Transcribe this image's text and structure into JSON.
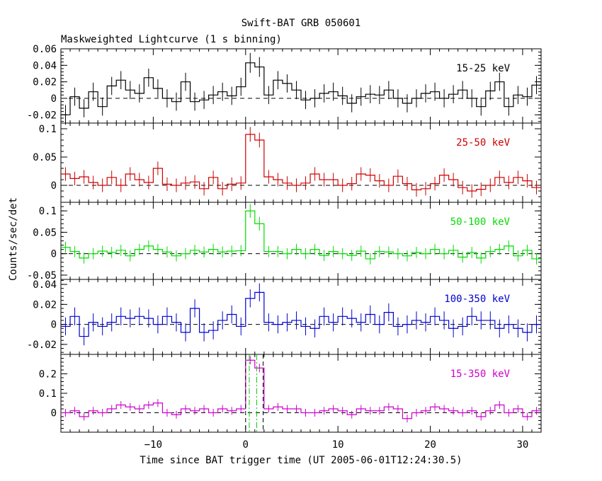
{
  "title": "Swift-BAT GRB 050601",
  "subtitle": "Maskweighted Lightcurve (1 s binning)",
  "xlabel": "Time since BAT trigger time (UT 2005-06-01T12:24:30.5)",
  "ylabel": "Counts/sec/det",
  "chart_data": [
    {
      "type": "line",
      "band": "15-25 keV",
      "color": "#000000",
      "xlim": [
        -20,
        32
      ],
      "ylim": [
        -0.03,
        0.06
      ],
      "yticks": [
        -0.02,
        0,
        0.02,
        0.04,
        0.06
      ],
      "ytick_labels": [
        "-0.02",
        "0",
        "0.02",
        "0.04",
        "0.06"
      ],
      "x": [
        -20,
        -19,
        -18,
        -17,
        -16,
        -15,
        -14,
        -13,
        -12,
        -11,
        -10,
        -9,
        -8,
        -7,
        -6,
        -5,
        -4,
        -3,
        -2,
        -1,
        0,
        1,
        2,
        3,
        4,
        5,
        6,
        7,
        8,
        9,
        10,
        11,
        12,
        13,
        14,
        15,
        16,
        17,
        18,
        19,
        20,
        21,
        22,
        23,
        24,
        25,
        26,
        27,
        28,
        29,
        30,
        31
      ],
      "values": [
        -0.02,
        0.002,
        -0.012,
        0.008,
        -0.01,
        0.015,
        0.022,
        0.01,
        0.006,
        0.025,
        0.012,
        0.0,
        -0.004,
        0.02,
        -0.004,
        -0.002,
        0.004,
        0.008,
        0.003,
        0.014,
        0.043,
        0.038,
        0.004,
        0.022,
        0.018,
        0.01,
        -0.002,
        0.0,
        0.006,
        0.008,
        0.003,
        -0.006,
        0.002,
        0.005,
        0.004,
        0.01,
        0.0,
        -0.006,
        0.0,
        0.006,
        0.008,
        0.0,
        0.005,
        0.01,
        0.0,
        -0.01,
        0.009,
        0.02,
        -0.01,
        0.004,
        0.002,
        0.016
      ],
      "errors": [
        0.012,
        0.011,
        0.011,
        0.011,
        0.011,
        0.011,
        0.011,
        0.011,
        0.011,
        0.011,
        0.011,
        0.011,
        0.011,
        0.011,
        0.011,
        0.011,
        0.011,
        0.011,
        0.011,
        0.011,
        0.012,
        0.012,
        0.011,
        0.011,
        0.011,
        0.011,
        0.011,
        0.011,
        0.011,
        0.011,
        0.011,
        0.011,
        0.011,
        0.011,
        0.011,
        0.011,
        0.011,
        0.011,
        0.011,
        0.011,
        0.011,
        0.011,
        0.011,
        0.011,
        0.011,
        0.011,
        0.011,
        0.011,
        0.011,
        0.011,
        0.011,
        0.011
      ]
    },
    {
      "type": "line",
      "band": "25-50 keV",
      "color": "#cc0000",
      "xlim": [
        -20,
        32
      ],
      "ylim": [
        -0.03,
        0.11
      ],
      "yticks": [
        0,
        0.05,
        0.1
      ],
      "ytick_labels": [
        "0",
        "0.05",
        "0.1"
      ],
      "x": [
        -20,
        -19,
        -18,
        -17,
        -16,
        -15,
        -14,
        -13,
        -12,
        -11,
        -10,
        -9,
        -8,
        -7,
        -6,
        -5,
        -4,
        -3,
        -2,
        -1,
        0,
        1,
        2,
        3,
        4,
        5,
        6,
        7,
        8,
        9,
        10,
        11,
        12,
        13,
        14,
        15,
        16,
        17,
        18,
        19,
        20,
        21,
        22,
        23,
        24,
        25,
        26,
        27,
        28,
        29,
        30,
        31
      ],
      "values": [
        0.02,
        0.012,
        0.015,
        0.005,
        0.0,
        0.014,
        0.0,
        0.02,
        0.01,
        0.005,
        0.03,
        0.002,
        0.0,
        0.004,
        0.006,
        -0.006,
        0.014,
        -0.006,
        0.002,
        0.004,
        0.09,
        0.08,
        0.015,
        0.01,
        0.004,
        0.0,
        0.004,
        0.02,
        0.01,
        0.01,
        0.0,
        0.003,
        0.02,
        0.018,
        0.008,
        0.0,
        0.016,
        0.003,
        -0.008,
        -0.006,
        0.003,
        0.018,
        0.01,
        -0.004,
        -0.01,
        -0.007,
        0.0,
        0.014,
        0.005,
        0.014,
        0.008,
        -0.004
      ],
      "errors": [
        0.012,
        0.012,
        0.012,
        0.012,
        0.012,
        0.012,
        0.012,
        0.012,
        0.012,
        0.012,
        0.012,
        0.012,
        0.012,
        0.012,
        0.012,
        0.012,
        0.012,
        0.012,
        0.012,
        0.012,
        0.013,
        0.013,
        0.012,
        0.012,
        0.012,
        0.012,
        0.012,
        0.012,
        0.012,
        0.012,
        0.012,
        0.012,
        0.012,
        0.012,
        0.012,
        0.012,
        0.012,
        0.012,
        0.012,
        0.012,
        0.012,
        0.012,
        0.012,
        0.012,
        0.012,
        0.012,
        0.012,
        0.012,
        0.012,
        0.012,
        0.012,
        0.012
      ]
    },
    {
      "type": "line",
      "band": "50-100 keV",
      "color": "#00dd00",
      "xlim": [
        -20,
        32
      ],
      "ylim": [
        -0.06,
        0.12
      ],
      "yticks": [
        -0.05,
        0,
        0.05,
        0.1
      ],
      "ytick_labels": [
        "-0.05",
        "0",
        "0.05",
        "0.1"
      ],
      "x": [
        -20,
        -19,
        -18,
        -17,
        -16,
        -15,
        -14,
        -13,
        -12,
        -11,
        -10,
        -9,
        -8,
        -7,
        -6,
        -5,
        -4,
        -3,
        -2,
        -1,
        0,
        1,
        2,
        3,
        4,
        5,
        6,
        7,
        8,
        9,
        10,
        11,
        12,
        13,
        14,
        15,
        16,
        17,
        18,
        19,
        20,
        21,
        22,
        23,
        24,
        25,
        26,
        27,
        28,
        29,
        30,
        31
      ],
      "values": [
        0.015,
        0.005,
        -0.01,
        0.0,
        0.006,
        0.003,
        0.008,
        -0.005,
        0.01,
        0.018,
        0.01,
        0.004,
        -0.005,
        0.0,
        0.008,
        0.004,
        0.01,
        0.004,
        0.006,
        0.007,
        0.1,
        0.07,
        0.005,
        0.005,
        0.0,
        0.01,
        0.0,
        0.01,
        -0.004,
        0.005,
        0.0,
        -0.004,
        0.006,
        -0.012,
        0.005,
        0.004,
        0.0,
        -0.005,
        0.003,
        0.0,
        0.01,
        0.0,
        0.008,
        -0.008,
        0.003,
        -0.01,
        0.005,
        0.01,
        0.018,
        -0.005,
        0.008,
        -0.012
      ],
      "errors": [
        0.013,
        0.013,
        0.013,
        0.013,
        0.013,
        0.013,
        0.013,
        0.013,
        0.013,
        0.013,
        0.013,
        0.013,
        0.013,
        0.013,
        0.013,
        0.013,
        0.013,
        0.013,
        0.013,
        0.013,
        0.016,
        0.016,
        0.013,
        0.013,
        0.013,
        0.013,
        0.013,
        0.013,
        0.013,
        0.013,
        0.013,
        0.013,
        0.013,
        0.013,
        0.013,
        0.013,
        0.013,
        0.013,
        0.013,
        0.013,
        0.013,
        0.013,
        0.013,
        0.013,
        0.013,
        0.013,
        0.013,
        0.013,
        0.013,
        0.013,
        0.013,
        0.013
      ]
    },
    {
      "type": "line",
      "band": "100-350 keV",
      "color": "#0000cc",
      "xlim": [
        -20,
        32
      ],
      "ylim": [
        -0.03,
        0.045
      ],
      "yticks": [
        -0.02,
        0,
        0.02,
        0.04
      ],
      "ytick_labels": [
        "-0.02",
        "0",
        "0.02",
        "0.04"
      ],
      "x": [
        -20,
        -19,
        -18,
        -17,
        -16,
        -15,
        -14,
        -13,
        -12,
        -11,
        -10,
        -9,
        -8,
        -7,
        -6,
        -5,
        -4,
        -3,
        -2,
        -1,
        0,
        1,
        2,
        3,
        4,
        5,
        6,
        7,
        8,
        9,
        10,
        11,
        12,
        13,
        14,
        15,
        16,
        17,
        18,
        19,
        20,
        21,
        22,
        23,
        24,
        25,
        26,
        27,
        28,
        29,
        30,
        31
      ],
      "values": [
        -0.002,
        0.008,
        -0.012,
        0.002,
        -0.002,
        0.002,
        0.008,
        0.006,
        0.008,
        0.006,
        0.0,
        0.008,
        0.002,
        -0.008,
        0.016,
        -0.008,
        -0.006,
        0.004,
        0.01,
        -0.002,
        0.026,
        0.032,
        0.002,
        0.0,
        0.002,
        0.004,
        -0.002,
        -0.004,
        0.008,
        0.002,
        0.008,
        0.006,
        0.002,
        0.01,
        0.0,
        0.012,
        -0.002,
        0.0,
        0.004,
        0.002,
        0.008,
        0.004,
        -0.004,
        -0.002,
        0.008,
        0.004,
        0.004,
        -0.004,
        0.0,
        -0.004,
        -0.008,
        0.0
      ],
      "errors": [
        0.009,
        0.009,
        0.009,
        0.009,
        0.009,
        0.009,
        0.009,
        0.009,
        0.009,
        0.009,
        0.009,
        0.009,
        0.009,
        0.009,
        0.009,
        0.009,
        0.009,
        0.009,
        0.009,
        0.009,
        0.009,
        0.009,
        0.009,
        0.009,
        0.009,
        0.009,
        0.009,
        0.009,
        0.009,
        0.009,
        0.009,
        0.009,
        0.009,
        0.009,
        0.009,
        0.009,
        0.009,
        0.009,
        0.009,
        0.009,
        0.009,
        0.009,
        0.009,
        0.009,
        0.009,
        0.009,
        0.009,
        0.009,
        0.009,
        0.009,
        0.009,
        0.009
      ]
    },
    {
      "type": "line",
      "band": "15-350 keV",
      "color": "#cc00cc",
      "xlim": [
        -20,
        32
      ],
      "ylim": [
        -0.1,
        0.3
      ],
      "yticks": [
        0,
        0.1,
        0.2
      ],
      "ytick_labels": [
        "0",
        "0.1",
        "0.2"
      ],
      "xticks": [
        -10,
        0,
        10,
        20,
        30
      ],
      "xtick_labels": [
        "−10",
        "0",
        "10",
        "20",
        "30"
      ],
      "x": [
        -20,
        -19,
        -18,
        -17,
        -16,
        -15,
        -14,
        -13,
        -12,
        -11,
        -10,
        -9,
        -8,
        -7,
        -6,
        -5,
        -4,
        -3,
        -2,
        -1,
        0,
        1,
        2,
        3,
        4,
        5,
        6,
        7,
        8,
        9,
        10,
        11,
        12,
        13,
        14,
        15,
        16,
        17,
        18,
        19,
        20,
        21,
        22,
        23,
        24,
        25,
        26,
        27,
        28,
        29,
        30,
        31
      ],
      "values": [
        0.0,
        0.01,
        -0.02,
        0.01,
        0.0,
        0.02,
        0.04,
        0.03,
        0.02,
        0.04,
        0.05,
        0.0,
        -0.01,
        0.02,
        0.01,
        0.02,
        0.0,
        0.02,
        0.01,
        0.02,
        0.27,
        0.23,
        0.02,
        0.03,
        0.02,
        0.02,
        0.0,
        0.0,
        0.01,
        0.02,
        0.01,
        -0.01,
        0.02,
        0.01,
        0.01,
        0.03,
        0.02,
        -0.03,
        0.0,
        0.01,
        0.03,
        0.02,
        0.01,
        0.0,
        0.01,
        -0.02,
        0.01,
        0.04,
        0.0,
        0.02,
        -0.02,
        0.01
      ],
      "errors": [
        0.02,
        0.02,
        0.02,
        0.02,
        0.02,
        0.02,
        0.02,
        0.02,
        0.02,
        0.02,
        0.02,
        0.02,
        0.02,
        0.02,
        0.02,
        0.02,
        0.02,
        0.02,
        0.02,
        0.02,
        0.022,
        0.022,
        0.02,
        0.02,
        0.02,
        0.02,
        0.02,
        0.02,
        0.02,
        0.02,
        0.02,
        0.02,
        0.02,
        0.02,
        0.02,
        0.02,
        0.02,
        0.02,
        0.02,
        0.02,
        0.02,
        0.02,
        0.02,
        0.02,
        0.02,
        0.02,
        0.02,
        0.02,
        0.02,
        0.02,
        0.02,
        0.02
      ],
      "markers": {
        "black_dashed_x": [
          0.0,
          1.9
        ],
        "green_dashdot_x": [
          0.4,
          1.2
        ]
      }
    }
  ]
}
